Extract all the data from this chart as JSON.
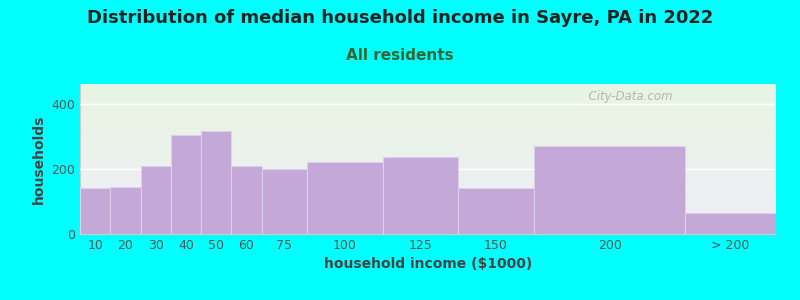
{
  "title": "Distribution of median household income in Sayre, PA in 2022",
  "subtitle": "All residents",
  "xlabel": "household income ($1000)",
  "ylabel": "households",
  "background_color": "#00ffff",
  "plot_bg_top": "#e8f5e2",
  "plot_bg_bottom": "#f0eef8",
  "bar_color": "#c4a8d8",
  "bar_edge_color": "#ddd0ea",
  "categories": [
    "10",
    "20",
    "30",
    "40",
    "50",
    "60",
    "75",
    "100",
    "125",
    "150",
    "200",
    "> 200"
  ],
  "values": [
    140,
    145,
    210,
    305,
    315,
    210,
    200,
    220,
    235,
    140,
    270,
    65
  ],
  "ylim": [
    0,
    460
  ],
  "yticks": [
    0,
    200,
    400
  ],
  "watermark": "  City-Data.com",
  "title_fontsize": 13,
  "subtitle_fontsize": 11,
  "axis_label_fontsize": 10,
  "tick_fontsize": 9,
  "title_color": "#222222",
  "subtitle_color": "#336633"
}
